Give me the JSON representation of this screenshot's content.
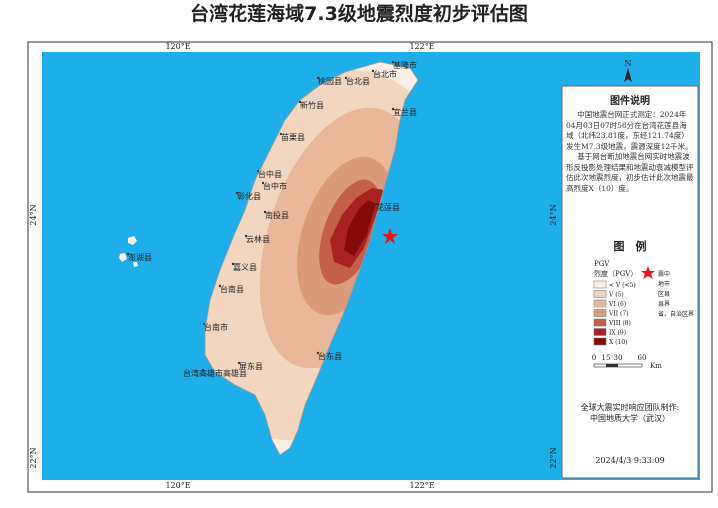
{
  "title": "台湾花莲海域7.3级地震烈度初步评估图",
  "grid_labels": {
    "top": [
      "120°E",
      "122°E"
    ],
    "bottom": [
      "120°E",
      "122°E"
    ],
    "left": [
      "24°N",
      "22°N"
    ],
    "right": [
      "24°N",
      "22°N"
    ]
  },
  "north": "N",
  "places": [
    "基隆市",
    "桃园县",
    "台北县",
    "台北市",
    "宜兰县",
    "新竹县",
    "苗栗县",
    "台中县",
    "台中市",
    "彰化县",
    "南投县",
    "云林县",
    "花莲县",
    "嘉义县",
    "台南县",
    "台南市",
    "澎湖县",
    "台东县",
    "屏东县",
    "台湾高雄市高雄县"
  ],
  "panel": {
    "description_title": "图件说明",
    "description": [
      "中国地震台网正式测定：2024年04月03日07时58分在台湾花莲县海域（北纬23.81度，东经121.74度）发生M7.3级地震，震源深度12千米。",
      "基于网台断加地震台网实时地震波形反投影处理结果和地震动衰减模型评估此次地震烈度，初步估计此次地震最高烈度X（10）度。"
    ],
    "legend_title": "图　例",
    "pgv_label": "PGV",
    "intensity_title": "烈度（PGV）",
    "intensity_items": [
      {
        "name": "< V (<5)",
        "color": "#fbeee3"
      },
      {
        "name": "V (5)",
        "color": "#f3d6c0"
      },
      {
        "name": "VI (6)",
        "color": "#e9b79a"
      },
      {
        "name": "VII (7)",
        "color": "#dc9a7d"
      },
      {
        "name": "VIII (8)",
        "color": "#c45f4c"
      },
      {
        "name": "IX (9)",
        "color": "#a82222"
      },
      {
        "name": "X (10)",
        "color": "#850a0a"
      }
    ],
    "symbol_items": [
      "震中",
      "地市",
      "区县",
      "县界",
      "省、自治区界"
    ],
    "scale_labels": [
      "0",
      "15",
      "30",
      "60"
    ],
    "scale_unit": "Km",
    "credit": [
      "全球大震实时响应团队制作:",
      "中国地质大学（武汉）"
    ],
    "timestamp": "2024/4/3 9:33:09"
  }
}
